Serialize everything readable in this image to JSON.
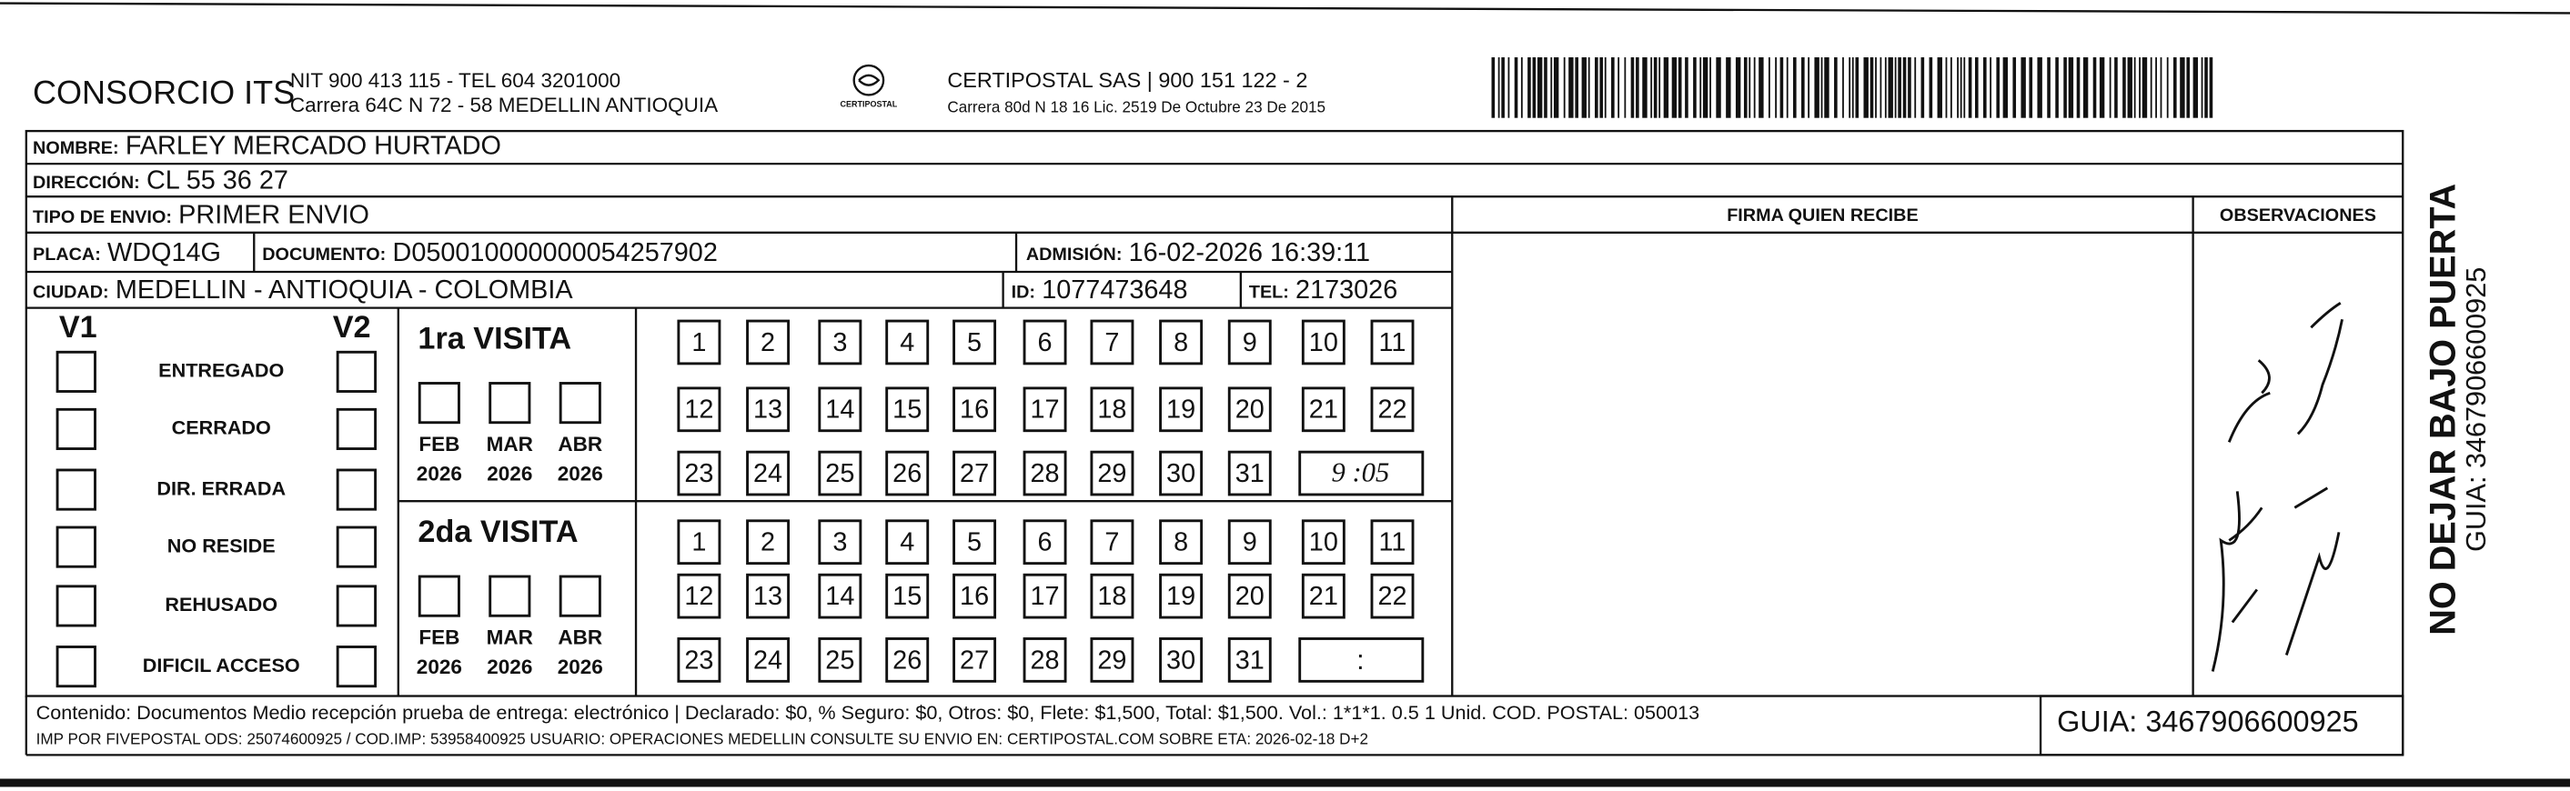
{
  "header": {
    "company": "CONSORCIO ITS",
    "nit": "NIT 900 413 115 - TEL 604 3201000",
    "address": "Carrera 64C N 72 - 58 MEDELLIN ANTIOQUIA",
    "logo_text": "CERTIPOSTAL",
    "carrier": "CERTIPOSTAL SAS | 900 151 122 - 2",
    "license": "Carrera 80d N 18 16  Lic. 2519 De Octubre 23 De 2015"
  },
  "fields": {
    "nombre": {
      "label": "NOMBRE:",
      "value": "FARLEY MERCADO HURTADO"
    },
    "direccion": {
      "label": "DIRECCIÓN:",
      "value": "CL 55 36 27"
    },
    "tipo": {
      "label": "TIPO DE ENVIO:",
      "value": "PRIMER ENVIO"
    },
    "placa": {
      "label": "PLACA:",
      "value": "WDQ14G"
    },
    "documento": {
      "label": "DOCUMENTO:",
      "value": "D050010000000054257902"
    },
    "admision": {
      "label": "ADMISIÓN:",
      "value": "16-02-2026 16:39:11"
    },
    "ciudad": {
      "label": "CIUDAD:",
      "value": "MEDELLIN - ANTIOQUIA - COLOMBIA"
    },
    "id": {
      "label": "ID:",
      "value": "1077473648"
    },
    "tel": {
      "label": "TEL:",
      "value": "2173026"
    }
  },
  "columns": {
    "firma": "FIRMA QUIEN RECIBE",
    "observaciones": "OBSERVACIONES"
  },
  "status": {
    "v1": "V1",
    "v2": "V2",
    "reasons": [
      "ENTREGADO",
      "CERRADO",
      "DIR. ERRADA",
      "NO RESIDE",
      "REHUSADO",
      "DIFICIL ACCESO"
    ]
  },
  "visits": [
    {
      "title": "1ra VISITA",
      "time": "9 :05"
    },
    {
      "title": "2da VISITA",
      "time": ":"
    }
  ],
  "months": [
    "FEB",
    "MAR",
    "ABR"
  ],
  "year": "2026",
  "days": [
    1,
    2,
    3,
    4,
    5,
    6,
    7,
    8,
    9,
    10,
    11,
    12,
    13,
    14,
    15,
    16,
    17,
    18,
    19,
    20,
    21,
    22,
    23,
    24,
    25,
    26,
    27,
    28,
    29,
    30,
    31
  ],
  "footer": {
    "content": "Contenido: Documentos Medio recepción prueba de entrega: electrónico | Declarado: $0, % Seguro: $0, Otros: $0, Flete: $1,500, Total: $1,500. Vol.: 1*1*1. 0.5  1 Unid. COD. POSTAL: 050013",
    "imp": "IMP POR FIVEPOSTAL ODS: 25074600925 / COD.IMP: 53958400925 USUARIO: OPERACIONES MEDELLIN CONSULTE SU ENVIO EN: CERTIPOSTAL.COM SOBRE ETA: 2026-02-18 D+2",
    "guia": "GUIA: 3467906600925"
  },
  "side": {
    "warning": "NO DEJAR BAJO PUERTA",
    "guia": "GUIA: 3467906600925"
  }
}
